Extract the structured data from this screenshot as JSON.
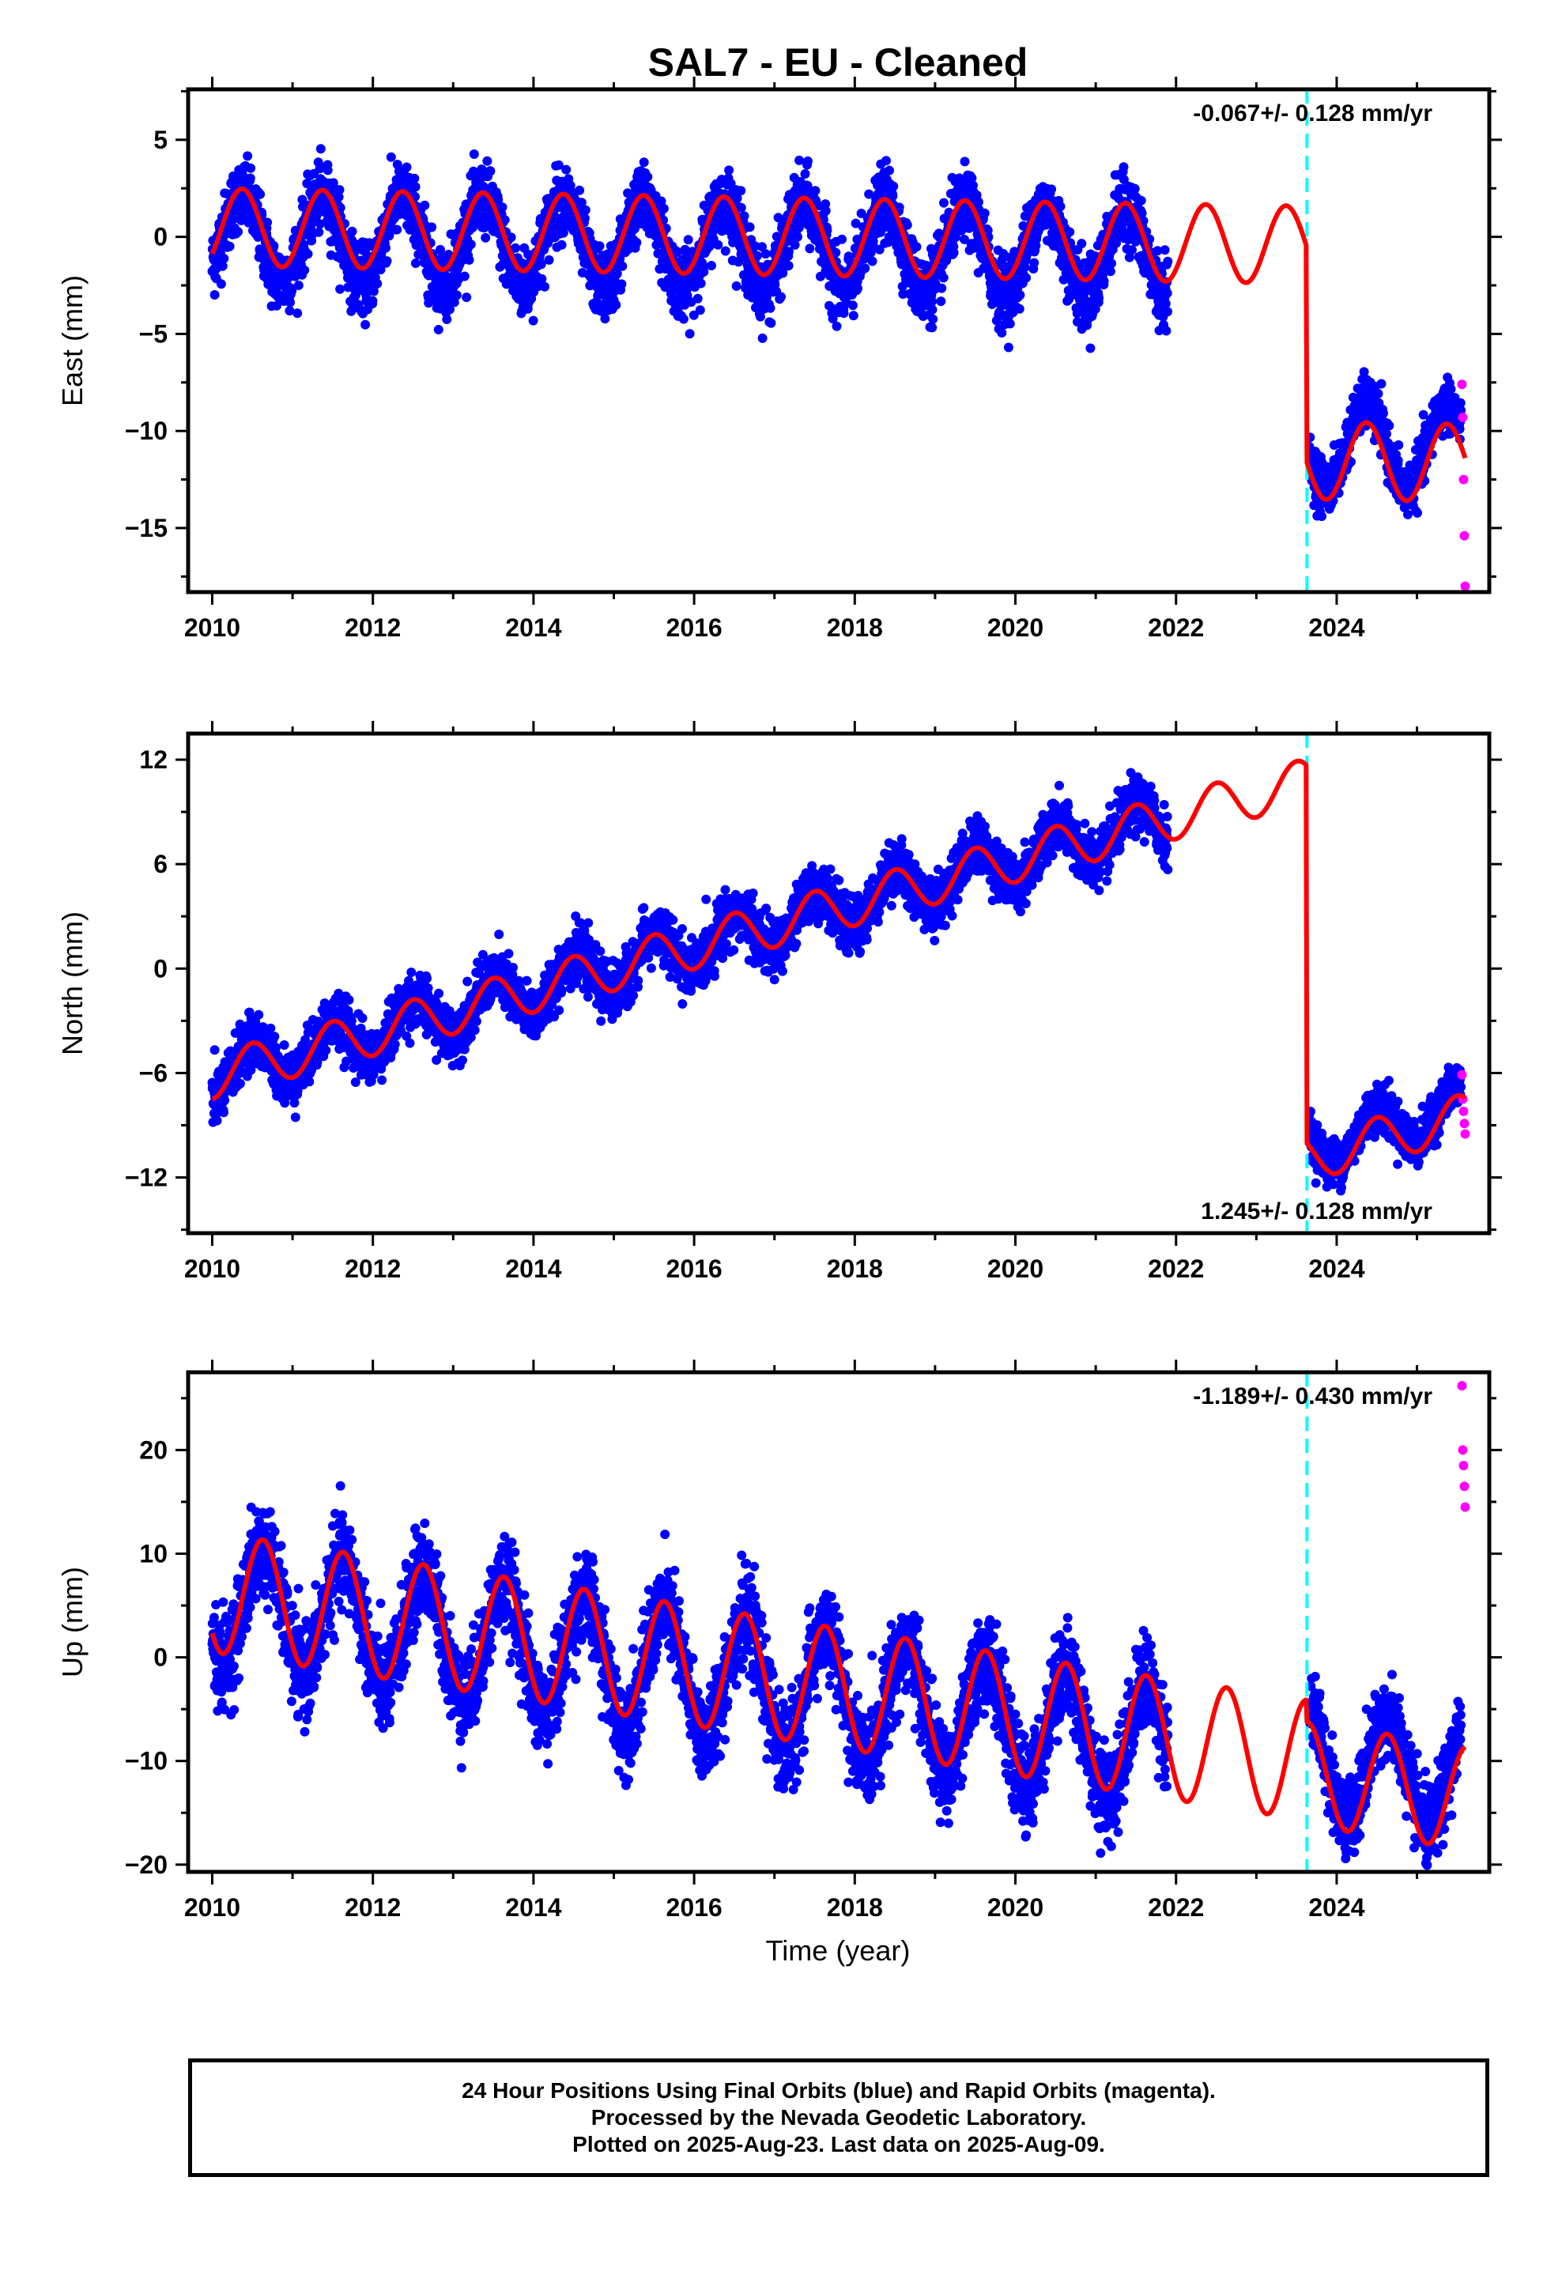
{
  "title": "SAL7  - EU - Cleaned",
  "xlabel": "Time (year)",
  "footer": [
    "24 Hour Positions Using Final Orbits (blue) and Rapid Orbits (magenta).",
    "Processed by the Nevada Geodetic Laboratory.",
    "Plotted on 2025-Aug-23. Last data on 2025-Aug-09."
  ],
  "colors": {
    "final": "#0000ff",
    "rapid": "#ff00ff",
    "model": "#ff0000",
    "step": "#00ffff",
    "frame": "#000000"
  },
  "chart_data": [
    {
      "type": "scatter",
      "ylabel": "East (mm)",
      "rate": "-0.067+/- 0.128 mm/yr",
      "xlim": [
        2009.7,
        2025.9
      ],
      "ylim": [
        -18.3,
        7.6
      ],
      "yticks": [
        5,
        0,
        -5,
        -10,
        -15
      ],
      "xticks": [
        2010,
        2012,
        2014,
        2016,
        2018,
        2020,
        2022,
        2024
      ],
      "grid": false,
      "equipment_change": 2023.63,
      "series": [
        {
          "style": "blue dots",
          "segments": [
            {
              "x_range": [
                2010.0,
                2021.9
              ],
              "offset": 0.0,
              "trend": -0.067,
              "annual_amp": 2.2,
              "phase": 2010.12,
              "spread": 1.6
            },
            {
              "x_range": [
                2023.66,
                2025.55
              ],
              "offset": -9.8,
              "trend": -0.067,
              "annual_amp": 2.2,
              "phase": 2010.12,
              "spread": 1.2
            }
          ]
        },
        {
          "style": "magenta dots",
          "x": [
            2025.56,
            2025.57,
            2025.58,
            2025.59,
            2025.6
          ],
          "values": [
            -7.6,
            -9.3,
            -12.5,
            -15.4,
            -18.0
          ]
        },
        {
          "style": "red model line",
          "segments": [
            {
              "x_range": [
                2010.0,
                2023.62
              ],
              "offset": 0.5,
              "trend": -0.067,
              "annual_amp": 2.0,
              "phase": 2010.12
            },
            {
              "x_range": [
                2023.63,
                2025.6
              ],
              "offset": -10.6,
              "trend": -0.067,
              "annual_amp": 2.0,
              "phase": 2010.12
            }
          ]
        }
      ]
    },
    {
      "type": "scatter",
      "ylabel": "North (mm)",
      "rate": "1.245+/- 0.128 mm/yr",
      "xlim": [
        2009.7,
        2025.9
      ],
      "ylim": [
        -15.2,
        13.5
      ],
      "yticks": [
        12,
        6,
        0,
        -6,
        -12
      ],
      "xticks": [
        2010,
        2012,
        2014,
        2016,
        2018,
        2020,
        2022,
        2024
      ],
      "grid": false,
      "equipment_change": 2023.63,
      "series": [
        {
          "style": "blue dots",
          "segments": [
            {
              "x_range": [
                2010.0,
                2021.9
              ],
              "offset": -6.2,
              "trend": 1.245,
              "annual_amp": 1.3,
              "phase": 2010.25,
              "spread": 1.4
            },
            {
              "x_range": [
                2023.66,
                2025.55
              ],
              "offset": -27.3,
              "trend": 1.245,
              "annual_amp": 1.3,
              "phase": 2010.25,
              "spread": 1.2
            }
          ]
        },
        {
          "style": "magenta dots",
          "x": [
            2025.56,
            2025.57,
            2025.58,
            2025.59,
            2025.6
          ],
          "values": [
            -6.1,
            -7.5,
            -8.2,
            -8.9,
            -9.5
          ]
        },
        {
          "style": "red model line",
          "segments": [
            {
              "x_range": [
                2010.0,
                2023.62
              ],
              "offset": -6.2,
              "trend": 1.245,
              "annual_amp": 1.3,
              "phase": 2010.25
            },
            {
              "x_range": [
                2023.63,
                2025.6
              ],
              "offset": -27.9,
              "trend": 1.245,
              "annual_amp": 1.3,
              "phase": 2010.25
            }
          ]
        }
      ]
    },
    {
      "type": "scatter",
      "ylabel": "Up (mm)",
      "rate": "-1.189+/- 0.430 mm/yr",
      "xlim": [
        2009.7,
        2025.9
      ],
      "ylim": [
        -20.7,
        27.5
      ],
      "yticks": [
        20,
        10,
        0,
        -10,
        -20
      ],
      "xticks": [
        2010,
        2012,
        2014,
        2016,
        2018,
        2020,
        2022,
        2024
      ],
      "grid": false,
      "equipment_change": 2023.63,
      "series": [
        {
          "style": "blue dots",
          "segments": [
            {
              "x_range": [
                2010.0,
                2021.9
              ],
              "offset": 5.5,
              "trend": -1.189,
              "annual_amp": 5.8,
              "phase": 2010.38,
              "spread": 4.0
            },
            {
              "x_range": [
                2023.66,
                2025.55
              ],
              "offset": 6.5,
              "trend": -1.189,
              "annual_amp": 5.0,
              "phase": 2010.38,
              "spread": 3.5
            }
          ]
        },
        {
          "style": "magenta dots",
          "x": [
            2025.56,
            2025.57,
            2025.58,
            2025.59,
            2025.6
          ],
          "values": [
            26.2,
            20.0,
            18.5,
            16.5,
            14.5
          ]
        },
        {
          "style": "red model line",
          "segments": [
            {
              "x_range": [
                2010.0,
                2023.62
              ],
              "offset": 6.3,
              "trend": -1.189,
              "annual_amp": 5.8,
              "phase": 2010.38
            },
            {
              "x_range": [
                2023.63,
                2025.6
              ],
              "offset": 5.0,
              "trend": -1.189,
              "annual_amp": 5.0,
              "phase": 2010.38
            }
          ]
        }
      ]
    }
  ]
}
